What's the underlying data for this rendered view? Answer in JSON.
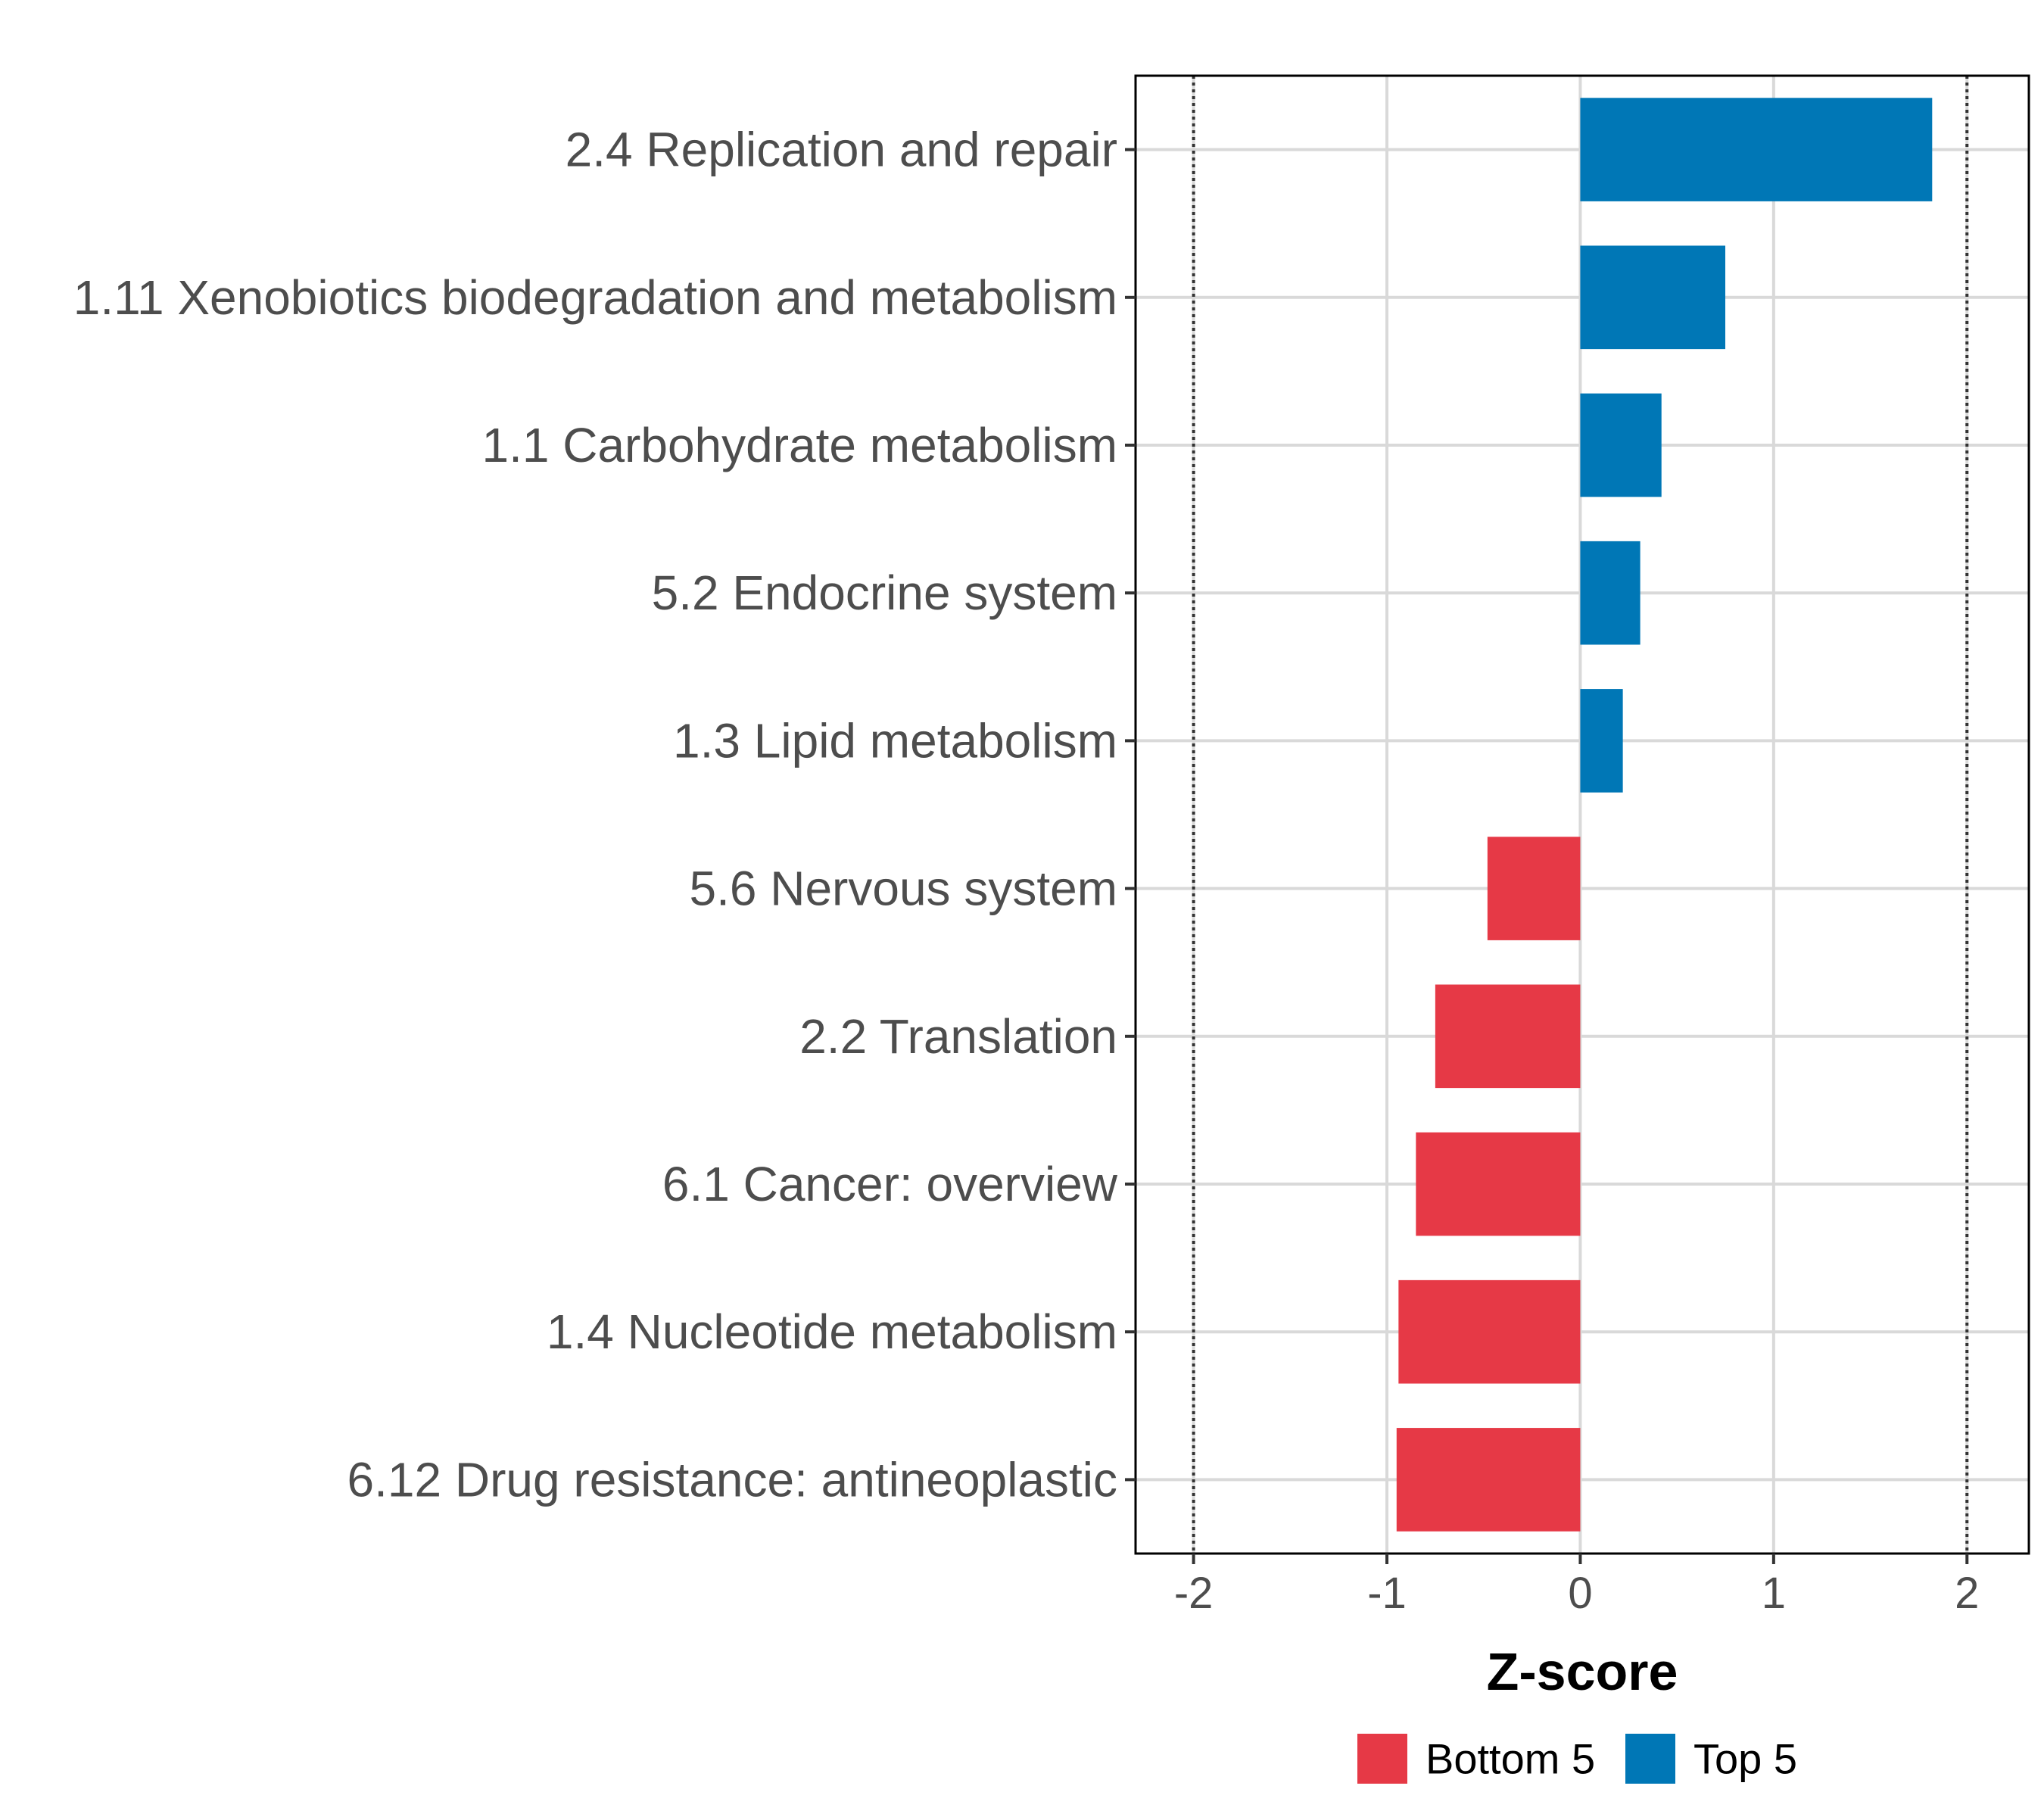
{
  "chart_data": {
    "type": "bar",
    "orientation": "horizontal",
    "title": "",
    "xlabel": "Z-score",
    "ylabel": "",
    "xlim": [
      -2.3,
      2.32
    ],
    "xticks": [
      -2,
      -1,
      0,
      1,
      2
    ],
    "xtick_labels": [
      "-2",
      "-1",
      "0",
      "1",
      "2"
    ],
    "reference_lines": [
      -2,
      2
    ],
    "grid": true,
    "categories": [
      "2.4 Replication and repair",
      "1.11 Xenobiotics biodegradation and metabolism",
      "1.1 Carbohydrate metabolism",
      "5.2 Endocrine system",
      "1.3 Lipid metabolism",
      "5.6 Nervous system",
      "2.2 Translation",
      "6.1 Cancer: overview",
      "1.4 Nucleotide metabolism",
      "6.12 Drug resistance: antineoplastic"
    ],
    "values": [
      1.82,
      0.75,
      0.42,
      0.31,
      0.22,
      -0.48,
      -0.75,
      -0.85,
      -0.94,
      -0.95
    ],
    "groups": [
      "Top 5",
      "Top 5",
      "Top 5",
      "Top 5",
      "Top 5",
      "Bottom 5",
      "Bottom 5",
      "Bottom 5",
      "Bottom 5",
      "Bottom 5"
    ],
    "legend": {
      "position": "bottom",
      "entries": [
        {
          "label": "Bottom 5",
          "color": "#E63946"
        },
        {
          "label": "Top 5",
          "color": "#0077B6"
        }
      ]
    },
    "colors": {
      "Top 5": "#0077B6",
      "Bottom 5": "#E63946"
    }
  }
}
